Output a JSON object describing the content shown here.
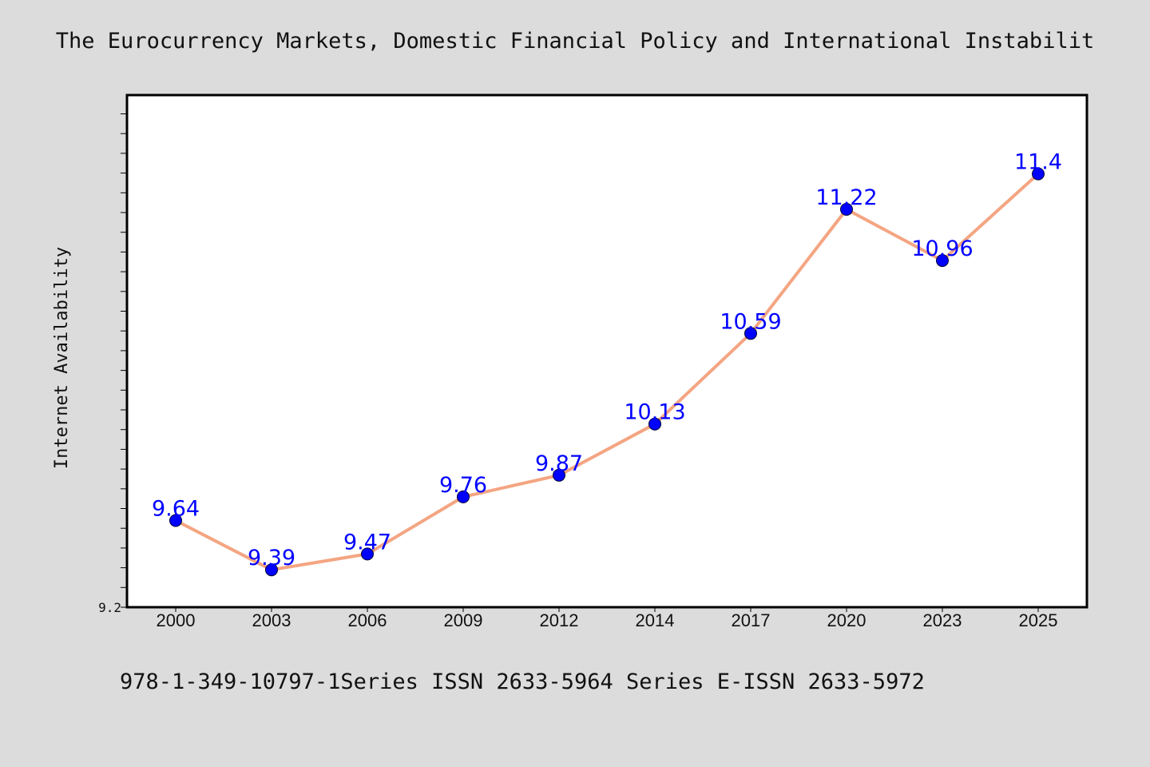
{
  "chart_data": {
    "type": "line",
    "title": "The Eurocurrency Markets, Domestic Financial Policy and International Instabilit",
    "ylabel": "Internet Availability",
    "xlabel": "",
    "categories": [
      "2000",
      "2003",
      "2006",
      "2009",
      "2012",
      "2014",
      "2017",
      "2020",
      "2023",
      "2025"
    ],
    "series": [
      {
        "values": [
          9.64,
          9.39,
          9.47,
          9.76,
          9.87,
          10.13,
          10.59,
          11.22,
          10.96,
          11.4
        ],
        "labels": [
          "9.64",
          "9.39",
          "9.47",
          "9.76",
          "9.87",
          "10.13",
          "10.59",
          "11.22",
          "10.96",
          "11.4"
        ]
      }
    ],
    "ylim": [
      9.2,
      11.8
    ],
    "y_tick_labels": [
      "9.2"
    ],
    "grid": false,
    "footer": "978-1-349-10797-1Series ISSN 2633-5964 Series E-ISSN 2633-5972",
    "colors": {
      "background": "#dcdcdc",
      "plot_background": "#ffffff",
      "line": "#f4a582",
      "marker": "#0000ff",
      "data_label": "#0000ff"
    }
  }
}
